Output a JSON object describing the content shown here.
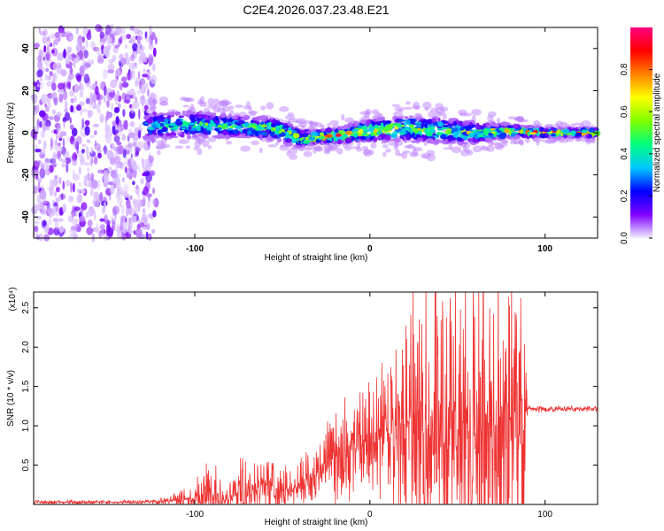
{
  "title": "C2E4.2026.037.23.48.E21",
  "chart_data": [
    {
      "type": "heatmap",
      "name": "spectrogram",
      "xlabel": "Height of straight line (km)",
      "ylabel": "Frequency (Hz)",
      "xlim": [
        -192,
        130
      ],
      "ylim": [
        -50,
        50
      ],
      "xticks": [
        -100,
        0,
        100
      ],
      "xtick_labels": [
        "-100",
        "0",
        "100"
      ],
      "yticks": [
        -40,
        -20,
        0,
        20,
        40
      ],
      "ytick_labels": [
        "-40",
        "-20",
        "0",
        "20",
        "40"
      ],
      "colorbar": {
        "label": "Normalized spectral amplitude",
        "range": [
          0,
          1
        ],
        "ticks": [
          0.0,
          0.2,
          0.4,
          0.6,
          0.8
        ],
        "tick_labels": [
          "0.0",
          "0.2",
          "0.4",
          "0.6",
          "0.8"
        ],
        "colors": [
          "#f0f0ff",
          "#8000ff",
          "#0000ff",
          "#00c8ff",
          "#00ff80",
          "#80ff00",
          "#ffff00",
          "#ff8000",
          "#ff0000",
          "#ff0080"
        ]
      },
      "ridge": {
        "x": [
          -130,
          -100,
          -75,
          -55,
          -45,
          -40,
          -30,
          -15,
          0,
          20,
          40,
          60,
          80,
          100,
          130
        ],
        "center": [
          3,
          4,
          3,
          2,
          -1,
          -3,
          -2,
          -1,
          1,
          2,
          1,
          0,
          1,
          0,
          0
        ],
        "halfwidth": [
          6,
          6,
          5,
          5,
          5,
          4,
          3,
          4,
          5,
          6,
          6,
          5,
          3,
          2,
          2
        ],
        "peak_amplitude": [
          0.45,
          0.5,
          0.55,
          0.6,
          0.65,
          0.7,
          0.85,
          0.8,
          0.7,
          0.65,
          0.6,
          0.6,
          0.75,
          0.9,
          0.9
        ]
      },
      "noise_region_x": [
        -192,
        -122
      ]
    },
    {
      "type": "line",
      "name": "snr",
      "xlabel": "Height of straight line (km)",
      "ylabel": "SNR (10 * v/v)",
      "y_multiplier": "(x10⁴)",
      "xlim": [
        -192,
        130
      ],
      "ylim": [
        0,
        2.7
      ],
      "xticks": [
        -100,
        0,
        100
      ],
      "xtick_labels": [
        "-100",
        "0",
        "100"
      ],
      "yticks": [
        0.5,
        1.0,
        1.5,
        2.0,
        2.5
      ],
      "ytick_labels": [
        "0.5",
        "1.0",
        "1.5",
        "2.0",
        "2.5"
      ],
      "color": "#ee3333",
      "envelope": {
        "x": [
          -192,
          -130,
          -120,
          -110,
          -100,
          -95,
          -90,
          -85,
          -80,
          -75,
          -70,
          -65,
          -60,
          -55,
          -50,
          -45,
          -40,
          -35,
          -30,
          -25,
          -20,
          -10,
          0,
          10,
          20,
          30,
          40,
          45,
          50,
          60,
          70,
          80,
          88,
          90,
          100,
          110,
          120,
          130
        ],
        "base": [
          0.03,
          0.03,
          0.04,
          0.05,
          0.08,
          0.1,
          0.12,
          0.1,
          0.1,
          0.18,
          0.22,
          0.2,
          0.3,
          0.2,
          0.18,
          0.2,
          0.25,
          0.3,
          0.4,
          0.5,
          0.6,
          0.75,
          0.85,
          0.9,
          0.95,
          1.0,
          1.0,
          1.0,
          1.0,
          1.0,
          1.0,
          1.0,
          1.0,
          1.22,
          1.21,
          1.21,
          1.22,
          1.22
        ],
        "amp": [
          0.02,
          0.02,
          0.03,
          0.08,
          0.15,
          0.35,
          0.35,
          0.2,
          0.2,
          0.3,
          0.35,
          0.3,
          0.3,
          0.3,
          0.25,
          0.2,
          0.25,
          0.3,
          0.3,
          0.35,
          0.45,
          0.5,
          0.5,
          0.7,
          1.2,
          1.5,
          1.6,
          1.65,
          1.5,
          1.6,
          1.55,
          1.5,
          1.4,
          0.03,
          0.03,
          0.03,
          0.03,
          0.03
        ]
      }
    }
  ]
}
